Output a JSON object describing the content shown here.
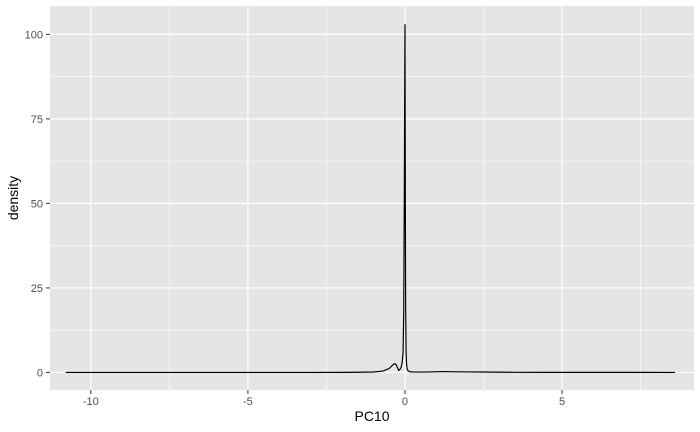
{
  "chart_data": {
    "type": "area",
    "xlabel": "PC10",
    "ylabel": "density",
    "xlim": [
      -11.3,
      9.2
    ],
    "ylim": [
      -5.2,
      108.4
    ],
    "x_ticks": [
      -10,
      -5,
      0,
      5
    ],
    "x_tick_labels": [
      "-10",
      "-5",
      "0",
      "5"
    ],
    "y_ticks": [
      0,
      25,
      50,
      75,
      100
    ],
    "y_tick_labels": [
      "0",
      "25",
      "50",
      "75",
      "100"
    ],
    "grid": true,
    "legend": "none",
    "colors": {
      "panel": "#e5e5e5",
      "grid": "#ffffff",
      "line": "#000000",
      "tick_text": "#4d4d4d"
    },
    "series": [
      {
        "x": [
          -10.8,
          -8,
          -5,
          -3,
          -2,
          -1.5,
          -1.0,
          -0.7,
          -0.5,
          -0.4,
          -0.33,
          -0.28,
          -0.24,
          -0.2,
          -0.16,
          -0.12,
          -0.09,
          -0.06,
          -0.04,
          -0.02,
          -0.01,
          0.0,
          0.01,
          0.02,
          0.035,
          0.05,
          0.07,
          0.1,
          0.15,
          0.3,
          0.5,
          0.8,
          1.2,
          1.6,
          2.0,
          2.4,
          2.8,
          3.5,
          4.5,
          6,
          8.6
        ],
        "y": [
          0,
          0,
          0,
          0,
          0.02,
          0.05,
          0.12,
          0.4,
          1.2,
          2.1,
          2.6,
          2.3,
          1.4,
          0.6,
          0.9,
          1.6,
          3.0,
          6.0,
          18,
          55,
          80,
          103,
          55,
          20,
          6,
          2.5,
          1.0,
          0.5,
          0.2,
          0.1,
          0.1,
          0.15,
          0.25,
          0.18,
          0.15,
          0.12,
          0.08,
          0.04,
          0.02,
          0.01,
          0
        ]
      }
    ]
  }
}
